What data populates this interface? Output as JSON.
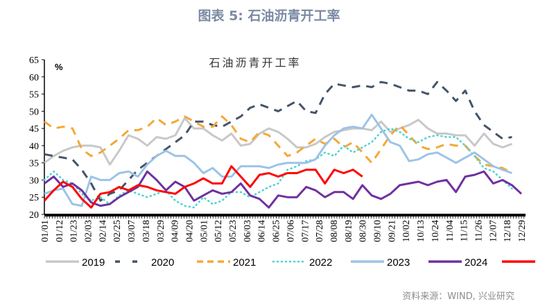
{
  "figure_title": "图表 5:  石油沥青开工率",
  "source": "资料来源：WIND, 兴业研究",
  "chart_data": {
    "type": "line",
    "title": "石油沥青开工率",
    "ylabel": "%",
    "ylim": [
      20,
      65
    ],
    "yticks": [
      20,
      25,
      30,
      35,
      40,
      45,
      50,
      55,
      60,
      65
    ],
    "xticks": [
      "01/01",
      "01/12",
      "01/23",
      "02/03",
      "02/14",
      "02/25",
      "03/07",
      "03/18",
      "03/29",
      "04/09",
      "04/20",
      "05/01",
      "05/12",
      "05/23",
      "06/03",
      "06/14",
      "06/25",
      "07/06",
      "07/17",
      "07/28",
      "08/08",
      "08/19",
      "08/30",
      "09/10",
      "09/21",
      "10/02",
      "10/13",
      "10/24",
      "11/04",
      "11/15",
      "11/26",
      "12/07",
      "12/18",
      "12/29"
    ],
    "x_frequency": "weekly",
    "grid": false,
    "legend": "bottom",
    "series": [
      {
        "name": "2019",
        "color": "#c8c8c8",
        "style": "solid",
        "values": [
          35,
          37,
          38.5,
          39.5,
          40,
          40,
          39.5,
          34.5,
          38.5,
          43,
          42,
          40,
          42.5,
          42,
          43,
          48,
          45,
          45,
          43,
          41.5,
          43.5,
          40,
          40.5,
          43.5,
          45,
          44,
          42,
          39.5,
          39.5,
          40.5,
          42.5,
          44,
          44.5,
          45,
          45,
          44.5,
          47,
          44,
          45,
          46,
          47.5,
          45,
          43.5,
          43.5,
          43,
          43,
          40,
          43.5,
          40.5,
          39.5,
          40.5
        ]
      },
      {
        "name": "2020",
        "color": "#44546a",
        "style": "dash",
        "values": [
          37.5,
          37,
          36.5,
          36,
          33,
          29,
          24,
          26,
          27,
          30,
          33,
          35,
          37,
          39,
          41,
          43,
          47,
          47,
          46,
          45.5,
          47,
          48.5,
          51,
          52,
          51,
          50,
          51.5,
          53,
          50,
          49.5,
          55,
          58,
          57.5,
          57,
          57.5,
          57,
          58.5,
          58,
          57,
          56,
          56,
          55,
          58.5,
          56,
          53,
          56,
          50,
          46,
          44,
          42,
          42.5
        ]
      },
      {
        "name": "2021",
        "color": "#f4a838",
        "style": "dash",
        "values": [
          47,
          45,
          45.5,
          45,
          39,
          37,
          38,
          40,
          42,
          44.5,
          44.5,
          45.5,
          48,
          46,
          47,
          48.5,
          47,
          45.5,
          45.5,
          48.5,
          46,
          42,
          41,
          44,
          43,
          40,
          37,
          38,
          40,
          42,
          40.5,
          42,
          39.5,
          41,
          38,
          35,
          39,
          43,
          46,
          43,
          40,
          39,
          39.5,
          40.5,
          40,
          40,
          37,
          34.5,
          34,
          33.5,
          32
        ]
      },
      {
        "name": "2022",
        "color": "#4fd3d0",
        "style": "dot",
        "values": [
          30,
          32.5,
          30,
          29,
          26,
          24,
          25,
          23,
          25.5,
          27,
          26,
          25,
          26,
          27,
          24,
          22.5,
          22,
          25,
          23,
          24,
          26.5,
          26.5,
          25,
          26.5,
          28,
          29,
          33,
          34,
          35.5,
          36,
          38,
          37,
          40,
          38,
          39.5,
          41,
          44,
          45,
          44,
          42,
          41,
          42.5,
          43,
          42.5,
          42.5,
          40,
          37,
          33.5,
          32.5,
          30,
          27.5
        ]
      },
      {
        "name": "2023",
        "color": "#9dc3e6",
        "style": "solid",
        "values": [
          26,
          27,
          27.5,
          23,
          22.5,
          31,
          30,
          30,
          32,
          32.5,
          31,
          34.5,
          37,
          38.5,
          37,
          37,
          35,
          32,
          33.5,
          31,
          31,
          34,
          34,
          34,
          33.5,
          34.5,
          35,
          35,
          35,
          36,
          40,
          43,
          45,
          45.5,
          45,
          49,
          45,
          41,
          40,
          35.5,
          36,
          37.5,
          38,
          36.5,
          35,
          36.5,
          38,
          36,
          34,
          33,
          32
        ]
      },
      {
        "name": "2024",
        "color": "#7030a0",
        "style": "solid",
        "values": [
          29,
          31,
          28,
          29,
          27,
          23.5,
          22.5,
          23,
          25,
          26.5,
          28,
          32.5,
          30,
          27,
          29.5,
          28,
          24,
          25.5,
          27,
          26,
          26.5,
          29,
          25.5,
          24.5,
          22,
          25.5,
          25,
          25,
          28,
          27,
          25,
          26.5,
          26.5,
          24.5,
          28.5,
          25.5,
          24.5,
          26,
          28.5,
          29,
          29.5,
          28.5,
          29.5,
          30,
          26.5,
          31,
          31.5,
          32.5,
          29,
          30,
          28.5,
          26
        ]
      },
      {
        "name": "2025",
        "color": "#ff0000",
        "style": "solid",
        "values": [
          24,
          27,
          29.5,
          28,
          24.5,
          22,
          26,
          26.5,
          28,
          27,
          28.5,
          28,
          27,
          26.5,
          26,
          28,
          29,
          30.5,
          29,
          29,
          34,
          31,
          28,
          31.5,
          32,
          31,
          32,
          32,
          33,
          33,
          29,
          33,
          32,
          33,
          31
        ]
      }
    ]
  }
}
